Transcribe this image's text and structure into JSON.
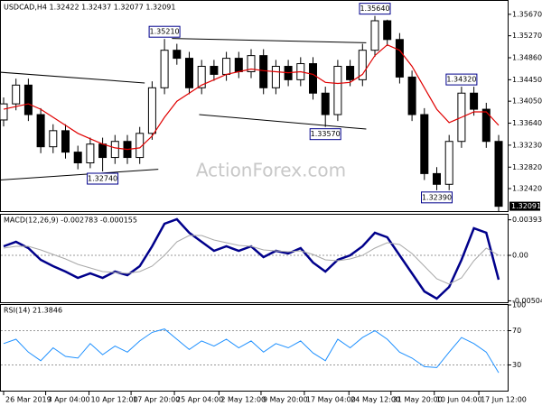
{
  "chart_data": [
    {
      "type": "candlestick",
      "title": "USDCAD,H4 1.32422 1.32437 1.32077 1.32091",
      "watermark": "ActionForex.com",
      "open": [
        1.337,
        1.34,
        1.3435,
        1.338,
        1.332,
        1.335,
        1.331,
        1.329,
        1.3325,
        1.33,
        1.333,
        1.33,
        1.3345,
        1.343,
        1.35,
        1.3485,
        1.343,
        1.347,
        1.3455,
        1.3485,
        1.346,
        1.349,
        1.343,
        1.347,
        1.3445,
        1.3475,
        1.342,
        1.338,
        1.347,
        1.3445,
        1.35,
        1.3555,
        1.352,
        1.345,
        1.338,
        1.327,
        1.325,
        1.333,
        1.342,
        1.339,
        1.333
      ],
      "high": [
        1.3412,
        1.3447,
        1.3447,
        1.3392,
        1.3362,
        1.3362,
        1.3322,
        1.3337,
        1.3337,
        1.3342,
        1.3342,
        1.3357,
        1.3442,
        1.3521,
        1.3512,
        1.3497,
        1.3482,
        1.3482,
        1.3497,
        1.3497,
        1.3502,
        1.3502,
        1.3482,
        1.3482,
        1.3487,
        1.3487,
        1.3432,
        1.3482,
        1.3482,
        1.3512,
        1.3564,
        1.3557,
        1.3532,
        1.3462,
        1.3392,
        1.3282,
        1.3342,
        1.3432,
        1.3432,
        1.3402,
        1.3342
      ],
      "low": [
        1.3358,
        1.3388,
        1.3368,
        1.3308,
        1.3308,
        1.3298,
        1.3278,
        1.328,
        1.3274,
        1.3288,
        1.3288,
        1.3288,
        1.3333,
        1.3418,
        1.3473,
        1.3418,
        1.3418,
        1.3443,
        1.3443,
        1.3448,
        1.3448,
        1.3418,
        1.3418,
        1.3433,
        1.3433,
        1.3408,
        1.3357,
        1.3368,
        1.3433,
        1.3433,
        1.3488,
        1.3508,
        1.3438,
        1.3368,
        1.3258,
        1.3239,
        1.3239,
        1.3318,
        1.3378,
        1.3318,
        1.32
      ],
      "close": [
        1.34,
        1.3435,
        1.338,
        1.332,
        1.335,
        1.331,
        1.329,
        1.3325,
        1.33,
        1.333,
        1.33,
        1.3345,
        1.343,
        1.35,
        1.3485,
        1.343,
        1.347,
        1.3455,
        1.3485,
        1.346,
        1.349,
        1.343,
        1.347,
        1.3445,
        1.3475,
        1.342,
        1.338,
        1.347,
        1.3445,
        1.35,
        1.3555,
        1.352,
        1.345,
        1.338,
        1.327,
        1.325,
        1.333,
        1.342,
        1.339,
        1.333,
        1.3209
      ],
      "series": [
        {
          "color": "#e00000",
          "values": [
            1.339,
            1.3395,
            1.34,
            1.339,
            1.3375,
            1.336,
            1.3345,
            1.3335,
            1.3325,
            1.3318,
            1.3315,
            1.3318,
            1.334,
            1.3375,
            1.3405,
            1.342,
            1.3435,
            1.3445,
            1.3455,
            1.346,
            1.3465,
            1.3462,
            1.346,
            1.3458,
            1.346,
            1.3455,
            1.344,
            1.3438,
            1.344,
            1.3455,
            1.349,
            1.351,
            1.35,
            1.347,
            1.343,
            1.339,
            1.3365,
            1.3375,
            1.3385,
            1.3385,
            1.336
          ]
        }
      ],
      "annotations": [
        {
          "index": 8,
          "value": 1.3274,
          "label": "1.32740"
        },
        {
          "index": 13,
          "value": 1.3521,
          "label": "1.35210"
        },
        {
          "index": 26,
          "value": 1.3357,
          "label": "1.33570"
        },
        {
          "index": 30,
          "value": 1.3564,
          "label": "1.35640"
        },
        {
          "index": 35,
          "value": 1.3239,
          "label": "1.32390"
        },
        {
          "index": 37,
          "value": 1.3432,
          "label": "1.34320"
        }
      ],
      "trendlines": [
        {
          "x": [
            -0.3,
            11.4
          ],
          "values": [
            1.3459,
            1.3439
          ]
        },
        {
          "x": [
            -0.3,
            12.5
          ],
          "values": [
            1.3258,
            1.3278
          ]
        },
        {
          "x": [
            13.6,
            29.3
          ],
          "values": [
            1.3522,
            1.3514
          ]
        },
        {
          "x": [
            15.8,
            29.3
          ],
          "values": [
            1.338,
            1.3353
          ]
        }
      ],
      "last_price": {
        "value": 1.32091,
        "label": "1.32091"
      },
      "ylim": [
        1.32,
        1.3592
      ],
      "yticks": [
        {
          "value": 1.3567,
          "label": "1.35670"
        },
        {
          "value": 1.3527,
          "label": "1.35270"
        },
        {
          "value": 1.3486,
          "label": "1.34860"
        },
        {
          "value": 1.3445,
          "label": "1.34450"
        },
        {
          "value": 1.3405,
          "label": "1.34050"
        },
        {
          "value": 1.3364,
          "label": "1.33640"
        },
        {
          "value": 1.3323,
          "label": "1.33230"
        },
        {
          "value": 1.3282,
          "label": "1.32820"
        },
        {
          "value": 1.3242,
          "label": "1.32420"
        }
      ]
    },
    {
      "type": "line",
      "title": "MACD(12,26,9) -0.002783 -0.000155",
      "series": [
        {
          "color": "#00008b",
          "values": [
            0.001,
            0.0015,
            0.0008,
            -0.0005,
            -0.0012,
            -0.0018,
            -0.0025,
            -0.002,
            -0.0025,
            -0.0018,
            -0.0022,
            -0.0012,
            0.001,
            0.0035,
            0.004,
            0.0025,
            0.0015,
            0.0005,
            0.001,
            0.0005,
            0.001,
            -0.0002,
            0.0005,
            0.0002,
            0.0008,
            -0.0008,
            -0.0018,
            -0.0005,
            0.0,
            0.001,
            0.0025,
            0.002,
            0.0,
            -0.002,
            -0.004,
            -0.0048,
            -0.0035,
            -0.0005,
            0.003,
            0.0025,
            -0.0027
          ]
        },
        {
          "color": "#a8a8a8",
          "values": [
            0.0008,
            0.001,
            0.001,
            0.0006,
            0.0001,
            -0.0004,
            -0.001,
            -0.0014,
            -0.0018,
            -0.0019,
            -0.002,
            -0.0018,
            -0.0012,
            0.0,
            0.0015,
            0.0022,
            0.0022,
            0.0017,
            0.0014,
            0.0011,
            0.001,
            0.0006,
            0.0005,
            0.0004,
            0.0005,
            0.0001,
            -0.0005,
            -0.0006,
            -0.0004,
            0.0,
            0.0008,
            0.0014,
            0.0012,
            0.0002,
            -0.0012,
            -0.0026,
            -0.0032,
            -0.0025,
            -0.0006,
            0.0008,
            0.0
          ]
        }
      ],
      "ylim": [
        -0.0052,
        0.0045
      ],
      "yticks": [
        0.003939,
        {
          "value": 0,
          "label": "0.00"
        },
        -0.005044
      ],
      "levels": [
        0
      ]
    },
    {
      "type": "line",
      "title": "RSI(14) 21.3846",
      "series": [
        {
          "color": "#1e90ff",
          "values": [
            55,
            60,
            45,
            35,
            50,
            40,
            38,
            55,
            42,
            52,
            45,
            58,
            68,
            72,
            60,
            48,
            58,
            52,
            60,
            50,
            58,
            45,
            55,
            50,
            58,
            44,
            35,
            60,
            50,
            62,
            70,
            60,
            45,
            38,
            28,
            27,
            45,
            62,
            55,
            45,
            21
          ]
        }
      ],
      "ylim": [
        0,
        100
      ],
      "yticks": [
        100,
        70,
        30
      ],
      "levels": [
        70,
        30
      ],
      "xticks": [
        {
          "value": 0,
          "label": "26 Mar 2019"
        },
        {
          "value": 3.4,
          "label": "3 Apr 04:00"
        },
        {
          "value": 6.9,
          "label": "10 Apr 12:00"
        },
        {
          "value": 10.3,
          "label": "17 Apr 20:00"
        },
        {
          "value": 13.8,
          "label": "25 Apr 04:00"
        },
        {
          "value": 17.4,
          "label": "2 May 12:00"
        },
        {
          "value": 20.8,
          "label": "9 May 20:00"
        },
        {
          "value": 24.3,
          "label": "17 May 04:00"
        },
        {
          "value": 27.9,
          "label": "24 May 12:00"
        },
        {
          "value": 31.3,
          "label": "31 May 20:00"
        },
        {
          "value": 34.8,
          "label": "10 Jun 04:00"
        },
        {
          "value": 38.4,
          "label": "17 Jun 12:00"
        }
      ]
    }
  ]
}
